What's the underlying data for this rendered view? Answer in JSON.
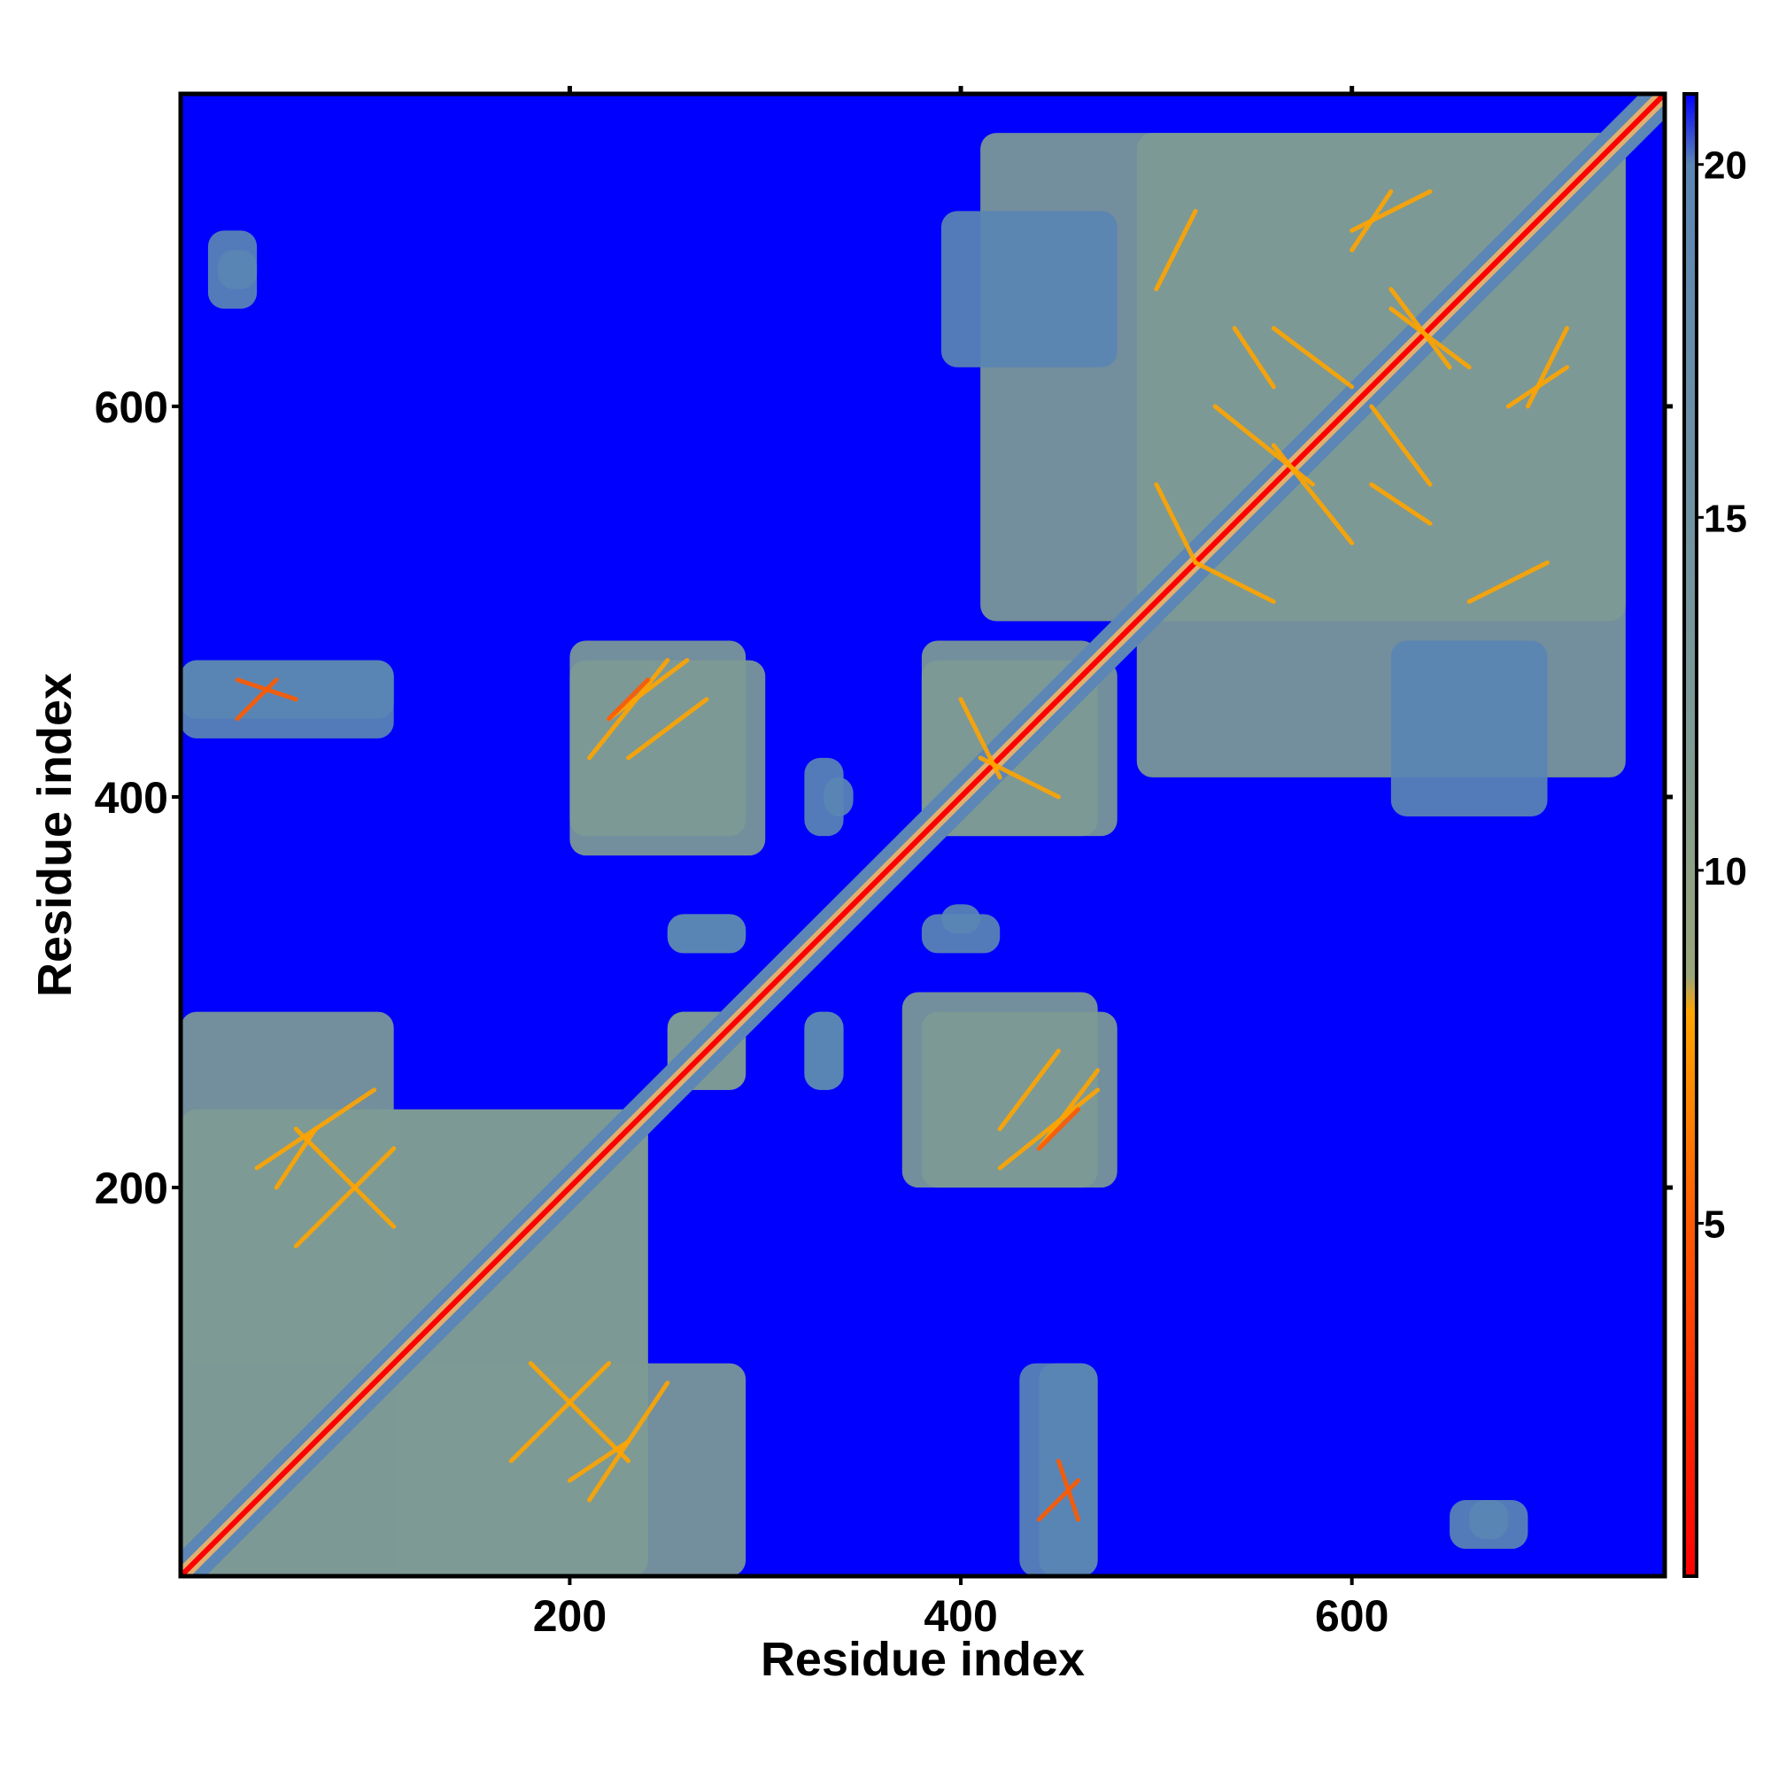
{
  "chart_data": {
    "type": "heatmap",
    "title": "",
    "xlabel": "Residue index",
    "ylabel": "Residue index",
    "xlim": [
      1,
      760
    ],
    "ylim": [
      1,
      760
    ],
    "x_ticks": [
      200,
      400,
      600
    ],
    "y_ticks": [
      200,
      400,
      600
    ],
    "x_tick_labels": [
      "200",
      "400",
      "600"
    ],
    "y_tick_labels": [
      "200",
      "400",
      "600"
    ],
    "colorbar": {
      "range": [
        0,
        21
      ],
      "ticks": [
        5,
        10,
        15,
        20
      ],
      "tick_labels": [
        "5",
        "10",
        "15",
        "20"
      ],
      "stops": [
        {
          "value": 0,
          "color": "#ff0000"
        },
        {
          "value": 5,
          "color": "#ff5a00"
        },
        {
          "value": 8,
          "color": "#ffa500"
        },
        {
          "value": 8.5,
          "color": "#9aa67a"
        },
        {
          "value": 12,
          "color": "#7d9a95"
        },
        {
          "value": 20,
          "color": "#5a86b4"
        },
        {
          "value": 21,
          "color": "#0000ff"
        }
      ]
    },
    "colors": {
      "background": "#0000ff",
      "contact": "#5b86b5",
      "near": "#e0b070",
      "diagonal": "#ff0000"
    },
    "diagonal_band_width": 6,
    "regions": [
      {
        "x": [
          1,
          240
        ],
        "y": [
          1,
          240
        ],
        "value": 15
      },
      {
        "x": [
          490,
          740
        ],
        "y": [
          410,
          740
        ],
        "value": 16
      },
      {
        "x": [
          1,
          110
        ],
        "y": [
          110,
          290
        ],
        "value": 16
      },
      {
        "x": [
          110,
          240
        ],
        "y": [
          1,
          110
        ],
        "value": 16
      },
      {
        "x": [
          1,
          110
        ],
        "y": [
          430,
          470
        ],
        "value": 17
      },
      {
        "x": [
          200,
          300
        ],
        "y": [
          370,
          470
        ],
        "value": 16
      },
      {
        "x": [
          380,
          480
        ],
        "y": [
          200,
          290
        ],
        "value": 16
      },
      {
        "x": [
          380,
          480
        ],
        "y": [
          380,
          470
        ],
        "value": 15
      },
      {
        "x": [
          440,
          470
        ],
        "y": [
          1,
          110
        ],
        "value": 17
      },
      {
        "x": [
          250,
          290
        ],
        "y": [
          250,
          290
        ],
        "value": 15
      },
      {
        "x": [
          320,
          340
        ],
        "y": [
          250,
          290
        ],
        "value": 17
      },
      {
        "x": [
          250,
          290
        ],
        "y": [
          320,
          340
        ],
        "value": 17
      },
      {
        "x": [
          330,
          345
        ],
        "y": [
          390,
          410
        ],
        "value": 17
      },
      {
        "x": [
          380,
          420
        ],
        "y": [
          320,
          340
        ],
        "value": 17
      },
      {
        "x": [
          20,
          40
        ],
        "y": [
          660,
          680
        ],
        "value": 17
      },
      {
        "x": [
          650,
          690
        ],
        "y": [
          15,
          40
        ],
        "value": 17
      },
      {
        "x": [
          390,
          480
        ],
        "y": [
          620,
          700
        ],
        "value": 18
      }
    ],
    "contact_lines": [
      {
        "from": [
          40,
          210
        ],
        "to": [
          100,
          250
        ],
        "value": 7
      },
      {
        "from": [
          60,
          230
        ],
        "to": [
          110,
          180
        ],
        "value": 7
      },
      {
        "from": [
          170,
          60
        ],
        "to": [
          220,
          110
        ],
        "value": 7
      },
      {
        "from": [
          200,
          50
        ],
        "to": [
          230,
          70
        ],
        "value": 7
      },
      {
        "from": [
          30,
          460
        ],
        "to": [
          60,
          450
        ],
        "value": 6
      },
      {
        "from": [
          220,
          440
        ],
        "to": [
          260,
          470
        ],
        "value": 7
      },
      {
        "from": [
          230,
          420
        ],
        "to": [
          270,
          450
        ],
        "value": 7
      },
      {
        "from": [
          420,
          210
        ],
        "to": [
          470,
          250
        ],
        "value": 7
      },
      {
        "from": [
          440,
          220
        ],
        "to": [
          460,
          240
        ],
        "value": 6
      },
      {
        "from": [
          410,
          420
        ],
        "to": [
          450,
          400
        ],
        "value": 7
      },
      {
        "from": [
          440,
          30
        ],
        "to": [
          460,
          50
        ],
        "value": 6
      },
      {
        "from": [
          530,
          600
        ],
        "to": [
          580,
          560
        ],
        "value": 7
      },
      {
        "from": [
          560,
          640
        ],
        "to": [
          600,
          610
        ],
        "value": 7
      },
      {
        "from": [
          610,
          560
        ],
        "to": [
          640,
          540
        ],
        "value": 7
      },
      {
        "from": [
          620,
          650
        ],
        "to": [
          660,
          620
        ],
        "value": 7
      },
      {
        "from": [
          660,
          500
        ],
        "to": [
          700,
          520
        ],
        "value": 7
      },
      {
        "from": [
          520,
          520
        ],
        "to": [
          560,
          500
        ],
        "value": 7
      },
      {
        "from": [
          600,
          690
        ],
        "to": [
          640,
          710
        ],
        "value": 7
      },
      {
        "from": [
          680,
          600
        ],
        "to": [
          710,
          620
        ],
        "value": 7
      }
    ]
  }
}
